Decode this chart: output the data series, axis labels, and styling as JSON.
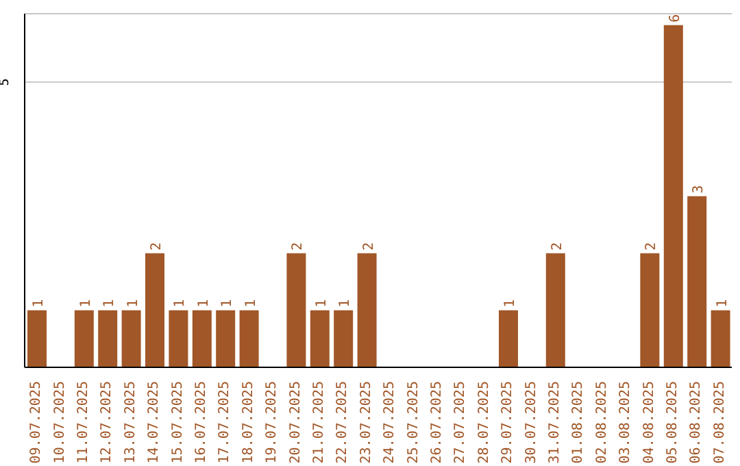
{
  "chart_data": {
    "type": "bar",
    "categories": [
      "09.07.2025",
      "10.07.2025",
      "11.07.2025",
      "12.07.2025",
      "13.07.2025",
      "14.07.2025",
      "15.07.2025",
      "16.07.2025",
      "17.07.2025",
      "18.07.2025",
      "19.07.2025",
      "20.07.2025",
      "21.07.2025",
      "22.07.2025",
      "23.07.2025",
      "24.07.2025",
      "25.07.2025",
      "26.07.2025",
      "27.07.2025",
      "28.07.2025",
      "29.07.2025",
      "30.07.2025",
      "31.07.2025",
      "01.08.2025",
      "02.08.2025",
      "03.08.2025",
      "04.08.2025",
      "05.08.2025",
      "06.08.2025",
      "07.08.2025"
    ],
    "values": [
      1,
      0,
      1,
      1,
      1,
      2,
      1,
      1,
      1,
      1,
      0,
      2,
      1,
      1,
      2,
      0,
      0,
      0,
      0,
      0,
      1,
      0,
      2,
      0,
      0,
      0,
      2,
      6,
      3,
      1
    ],
    "value_labels": [
      "1",
      null,
      "1",
      "1",
      "1",
      "2",
      "1",
      "1",
      "1",
      "1",
      null,
      "2",
      "1",
      "1",
      "2",
      null,
      null,
      null,
      null,
      null,
      "1",
      null,
      "2",
      null,
      null,
      null,
      "2",
      "6",
      "3",
      "1"
    ],
    "color": "#a15728",
    "ylim": [
      0,
      6.2
    ],
    "yticks": [
      5
    ],
    "grid": "y",
    "legend": false
  }
}
